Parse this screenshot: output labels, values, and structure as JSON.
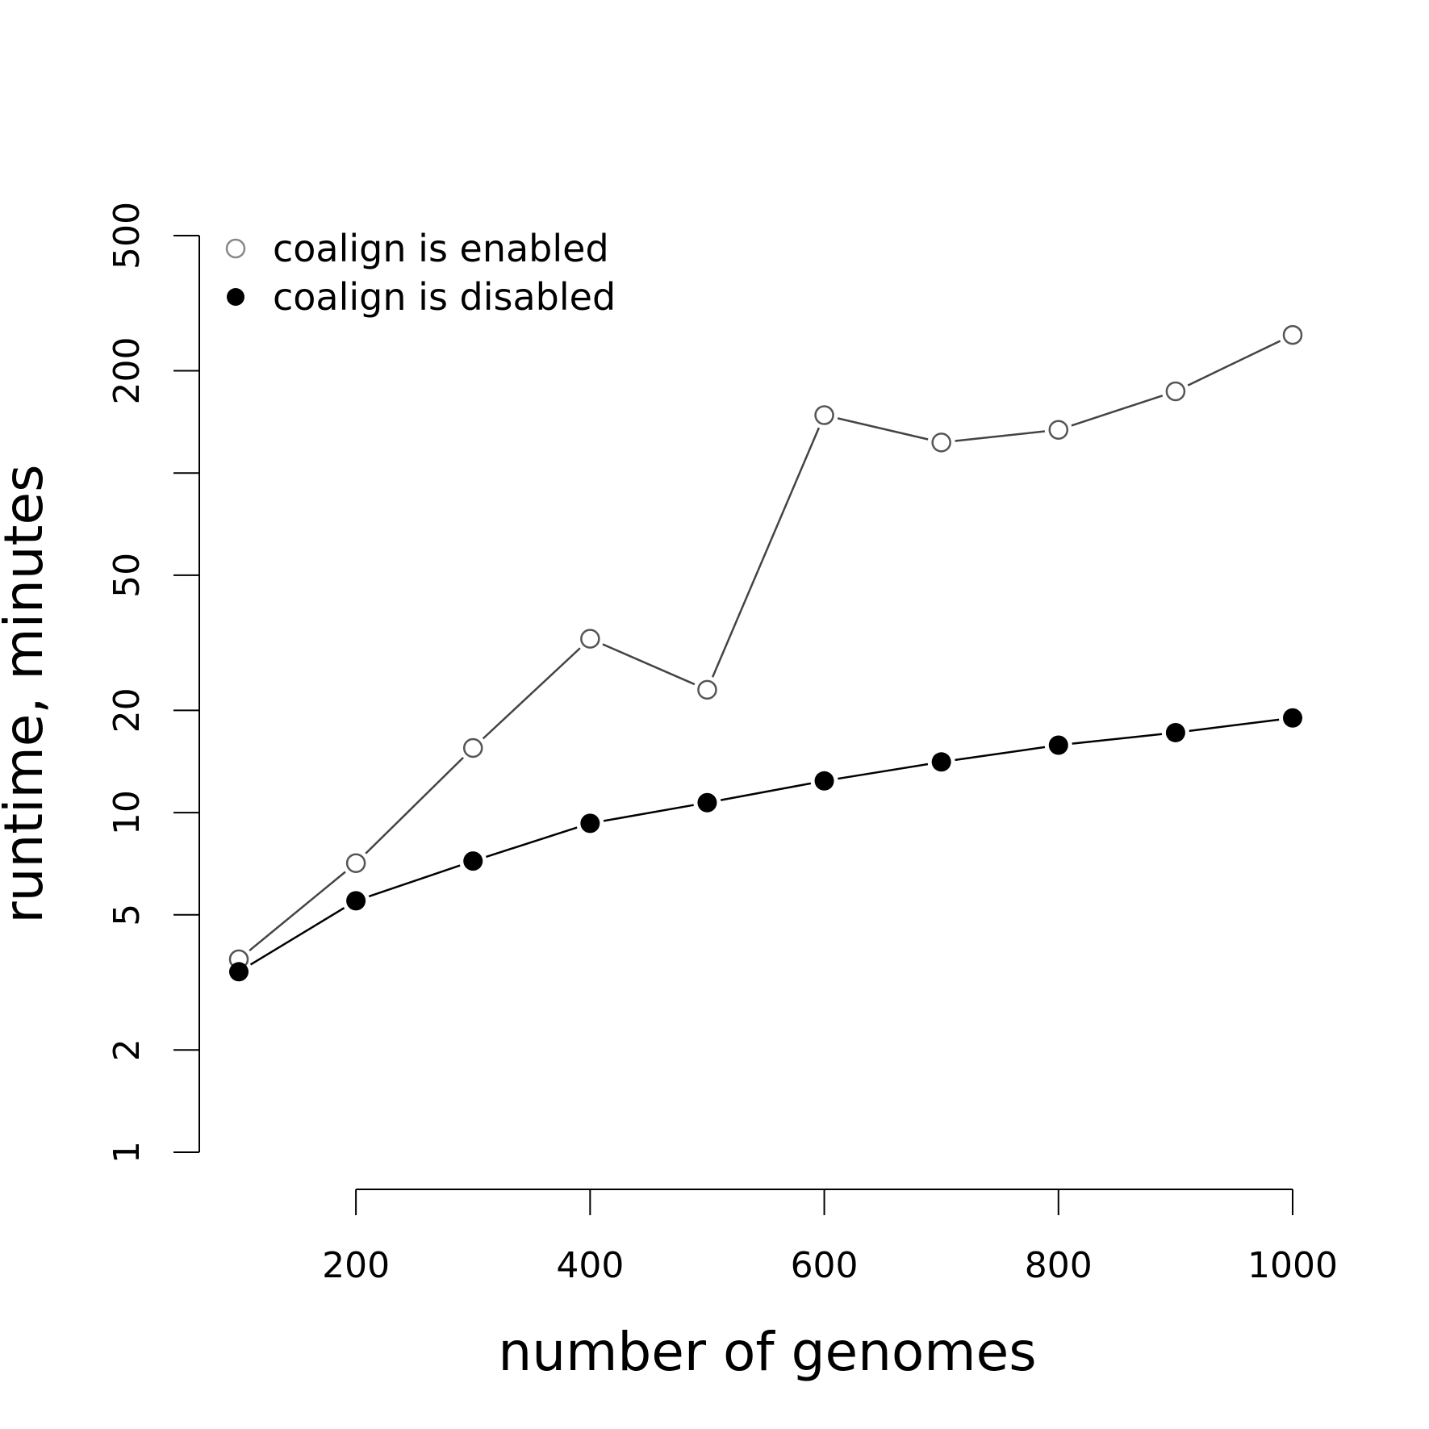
{
  "chart_data": {
    "type": "line",
    "title": "",
    "xlabel": "number of genomes",
    "ylabel": "runtime, minutes",
    "x_scale": "linear",
    "y_scale": "log",
    "xlim": [
      100,
      1000
    ],
    "ylim": [
      1,
      500
    ],
    "x_ticks": [
      200,
      400,
      600,
      800,
      1000
    ],
    "y_ticks": [
      1,
      2,
      5,
      10,
      20,
      50,
      100,
      200,
      500
    ],
    "y_tick_labels": [
      "1",
      "2",
      "5",
      "10",
      "20",
      "50",
      "",
      "200",
      "500"
    ],
    "grid": false,
    "legend_position": "top-left",
    "x": [
      100,
      200,
      300,
      400,
      500,
      600,
      700,
      800,
      900,
      1000
    ],
    "series": [
      {
        "name": "coalign is enabled",
        "values": [
          3.7,
          7.1,
          15.5,
          32.5,
          23.0,
          148.0,
          123.0,
          134.0,
          174.0,
          255.0
        ],
        "marker": "open-circle",
        "color": "#444444"
      },
      {
        "name": "coalign is disabled",
        "values": [
          3.4,
          5.5,
          7.2,
          9.3,
          10.7,
          12.4,
          14.1,
          15.8,
          17.2,
          19.0
        ],
        "marker": "filled-circle",
        "color": "#000000"
      }
    ]
  }
}
